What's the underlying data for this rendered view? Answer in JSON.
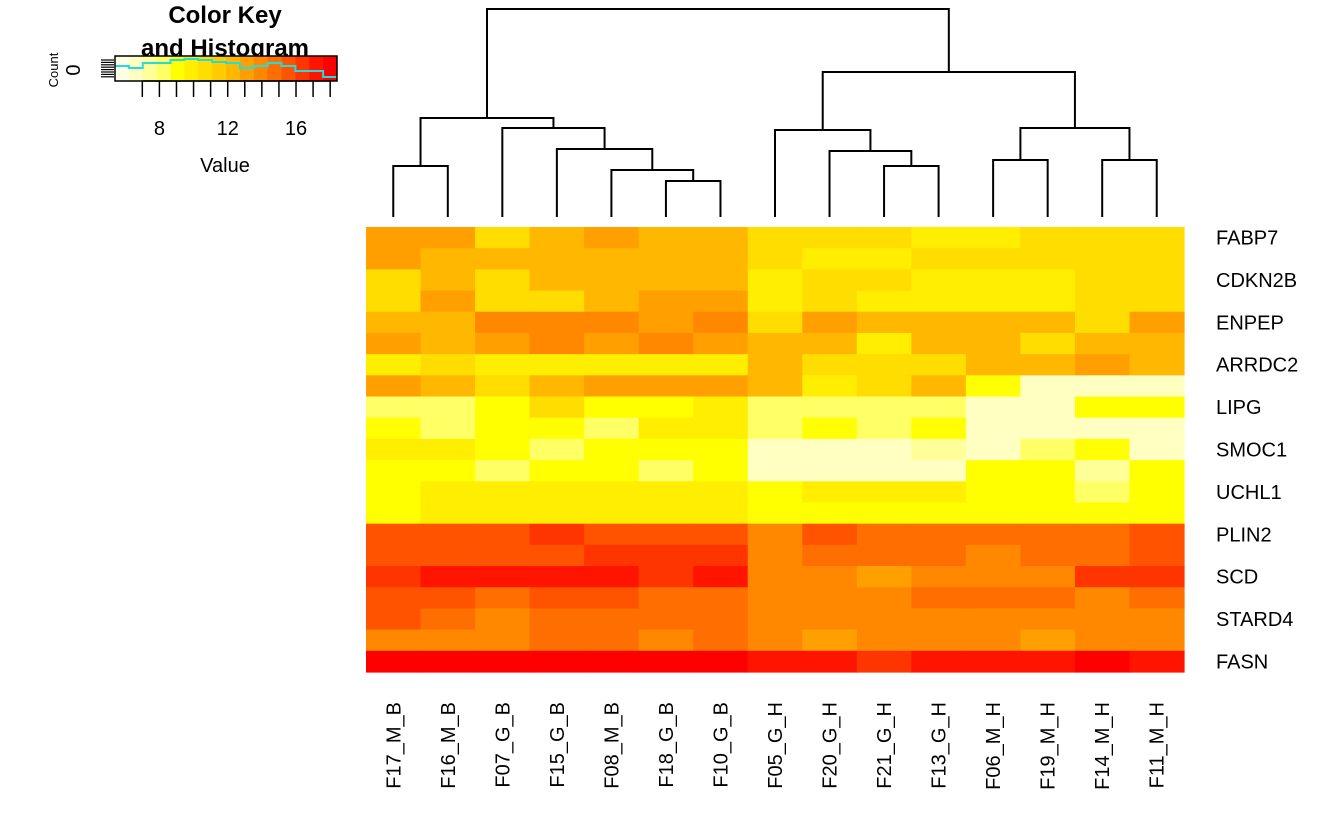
{
  "chart_data": {
    "type": "heatmap",
    "columns": [
      "F17_M_B",
      "F16_M_B",
      "F07_G_B",
      "F15_G_B",
      "F08_M_B",
      "F18_G_B",
      "F10_G_B",
      "F05_G_H",
      "F20_G_H",
      "F21_G_H",
      "F13_G_H",
      "F06_M_H",
      "F19_M_H",
      "F14_M_H",
      "F11_M_H"
    ],
    "row_labels_shown": [
      "FABP7",
      "CDKN2B",
      "ENPEP",
      "ARRDC2",
      "LIPG",
      "SMOC1",
      "UCHL1",
      "PLIN2",
      "SCD",
      "STARD4",
      "FASN"
    ],
    "rows": [
      {
        "label": "FABP7",
        "values": [
          12.9,
          12.9,
          11.0,
          12.0,
          12.9,
          12.0,
          12.0,
          11.0,
          11.0,
          11.0,
          10.0,
          10.0,
          11.0,
          11.0,
          11.0
        ]
      },
      {
        "label": "",
        "values": [
          12.9,
          12.0,
          12.0,
          12.0,
          12.0,
          12.0,
          12.0,
          11.0,
          10.0,
          10.0,
          11.0,
          11.0,
          11.0,
          11.0,
          11.0
        ]
      },
      {
        "label": "CDKN2B",
        "values": [
          11.0,
          12.0,
          11.0,
          12.0,
          12.0,
          12.0,
          12.0,
          10.0,
          11.0,
          11.0,
          10.0,
          10.0,
          10.0,
          11.0,
          11.0
        ]
      },
      {
        "label": "",
        "values": [
          11.0,
          12.9,
          11.0,
          11.0,
          12.0,
          12.9,
          12.9,
          9.6,
          11.0,
          10.0,
          10.0,
          10.0,
          10.0,
          11.0,
          11.0
        ]
      },
      {
        "label": "ENPEP",
        "values": [
          12.0,
          12.0,
          13.6,
          13.6,
          13.6,
          12.9,
          13.6,
          11.0,
          12.9,
          12.0,
          12.0,
          12.0,
          12.0,
          11.0,
          12.9
        ]
      },
      {
        "label": "",
        "values": [
          12.9,
          12.0,
          12.9,
          13.6,
          12.9,
          13.6,
          12.9,
          12.0,
          12.0,
          10.0,
          12.0,
          12.0,
          11.0,
          12.0,
          12.0
        ]
      },
      {
        "label": "ARRDC2",
        "values": [
          10.0,
          11.0,
          10.0,
          10.0,
          10.0,
          10.0,
          10.0,
          12.0,
          11.0,
          11.0,
          11.0,
          12.0,
          12.0,
          12.9,
          12.0
        ]
      },
      {
        "label": "",
        "values": [
          12.9,
          12.0,
          11.0,
          12.0,
          12.9,
          12.9,
          12.9,
          12.0,
          10.0,
          11.0,
          12.0,
          8.8,
          7.0,
          7.0,
          7.0
        ]
      },
      {
        "label": "LIPG",
        "values": [
          8.0,
          8.0,
          9.2,
          11.0,
          8.8,
          8.8,
          9.6,
          8.0,
          8.0,
          8.0,
          8.0,
          7.0,
          7.0,
          8.8,
          8.8
        ]
      },
      {
        "label": "",
        "values": [
          9.2,
          8.0,
          9.2,
          9.2,
          8.0,
          9.6,
          9.6,
          8.0,
          9.2,
          8.0,
          9.2,
          7.0,
          7.0,
          7.0,
          7.0
        ]
      },
      {
        "label": "SMOC1",
        "values": [
          10.0,
          10.0,
          9.2,
          8.0,
          9.2,
          9.2,
          9.2,
          6.8,
          6.8,
          6.8,
          7.4,
          7.0,
          8.0,
          8.8,
          7.0
        ]
      },
      {
        "label": "",
        "values": [
          9.2,
          9.2,
          8.0,
          9.2,
          9.2,
          8.0,
          9.2,
          6.8,
          6.8,
          6.8,
          6.8,
          8.8,
          8.8,
          7.6,
          8.8
        ]
      },
      {
        "label": "UCHL1",
        "values": [
          9.2,
          9.6,
          10.0,
          10.0,
          10.0,
          10.0,
          10.0,
          9.2,
          9.6,
          9.6,
          9.6,
          8.8,
          9.2,
          8.0,
          9.2
        ]
      },
      {
        "label": "",
        "values": [
          9.2,
          9.6,
          9.6,
          10.0,
          10.0,
          9.6,
          10.0,
          9.2,
          9.2,
          8.8,
          8.8,
          8.8,
          8.8,
          8.8,
          8.8
        ]
      },
      {
        "label": "PLIN2",
        "values": [
          15.6,
          15.6,
          15.6,
          16.2,
          15.6,
          15.6,
          15.6,
          14.3,
          15.6,
          15.0,
          15.0,
          15.0,
          15.0,
          15.0,
          15.6
        ]
      },
      {
        "label": "",
        "values": [
          15.6,
          15.6,
          15.6,
          15.6,
          16.2,
          16.2,
          16.2,
          13.6,
          15.0,
          15.0,
          15.0,
          13.6,
          15.0,
          15.0,
          15.6
        ]
      },
      {
        "label": "SCD",
        "values": [
          16.2,
          16.8,
          16.8,
          16.8,
          16.8,
          16.2,
          17.4,
          14.3,
          14.3,
          12.9,
          14.3,
          14.3,
          14.3,
          16.2,
          16.2
        ]
      },
      {
        "label": "",
        "values": [
          15.6,
          15.6,
          15.0,
          15.6,
          15.6,
          15.0,
          15.0,
          13.6,
          14.3,
          14.3,
          15.0,
          15.0,
          15.0,
          14.3,
          15.0
        ]
      },
      {
        "label": "STARD4",
        "values": [
          15.6,
          15.0,
          13.6,
          15.0,
          15.0,
          15.0,
          15.0,
          13.6,
          13.6,
          14.3,
          14.3,
          14.3,
          14.3,
          14.3,
          14.3
        ]
      },
      {
        "label": "",
        "values": [
          14.3,
          13.6,
          13.6,
          15.0,
          15.0,
          14.3,
          15.0,
          13.6,
          12.9,
          13.6,
          13.6,
          13.6,
          12.9,
          13.6,
          14.3
        ]
      },
      {
        "label": "FASN",
        "values": [
          17.8,
          17.8,
          17.8,
          17.8,
          17.8,
          17.8,
          17.8,
          16.8,
          16.8,
          16.2,
          16.8,
          17.4,
          16.8,
          17.8,
          17.4
        ]
      }
    ],
    "color_key": {
      "title_line1": "Color Key",
      "title_line2": "and Histogram",
      "xlabel": "Value",
      "ylabel": "Count",
      "ytick": "0",
      "xticks": [
        "8",
        "12",
        "16"
      ],
      "xtick_values": [
        8,
        12,
        16
      ],
      "range": [
        5.4,
        18.4
      ],
      "colors": [
        "#FFFFE6",
        "#FFFFC2",
        "#FFFF99",
        "#FFFF66",
        "#FFFF00",
        "#FFEE00",
        "#FFDD00",
        "#FFCC00",
        "#FFB700",
        "#FFA000",
        "#FF8800",
        "#FF6E00",
        "#FF5300",
        "#FF3500",
        "#FF1400",
        "#FF0000"
      ],
      "histogram_color": "#22DDDD"
    },
    "dendrogram": "complete linkage clustering of columns",
    "legend": "top-left"
  }
}
